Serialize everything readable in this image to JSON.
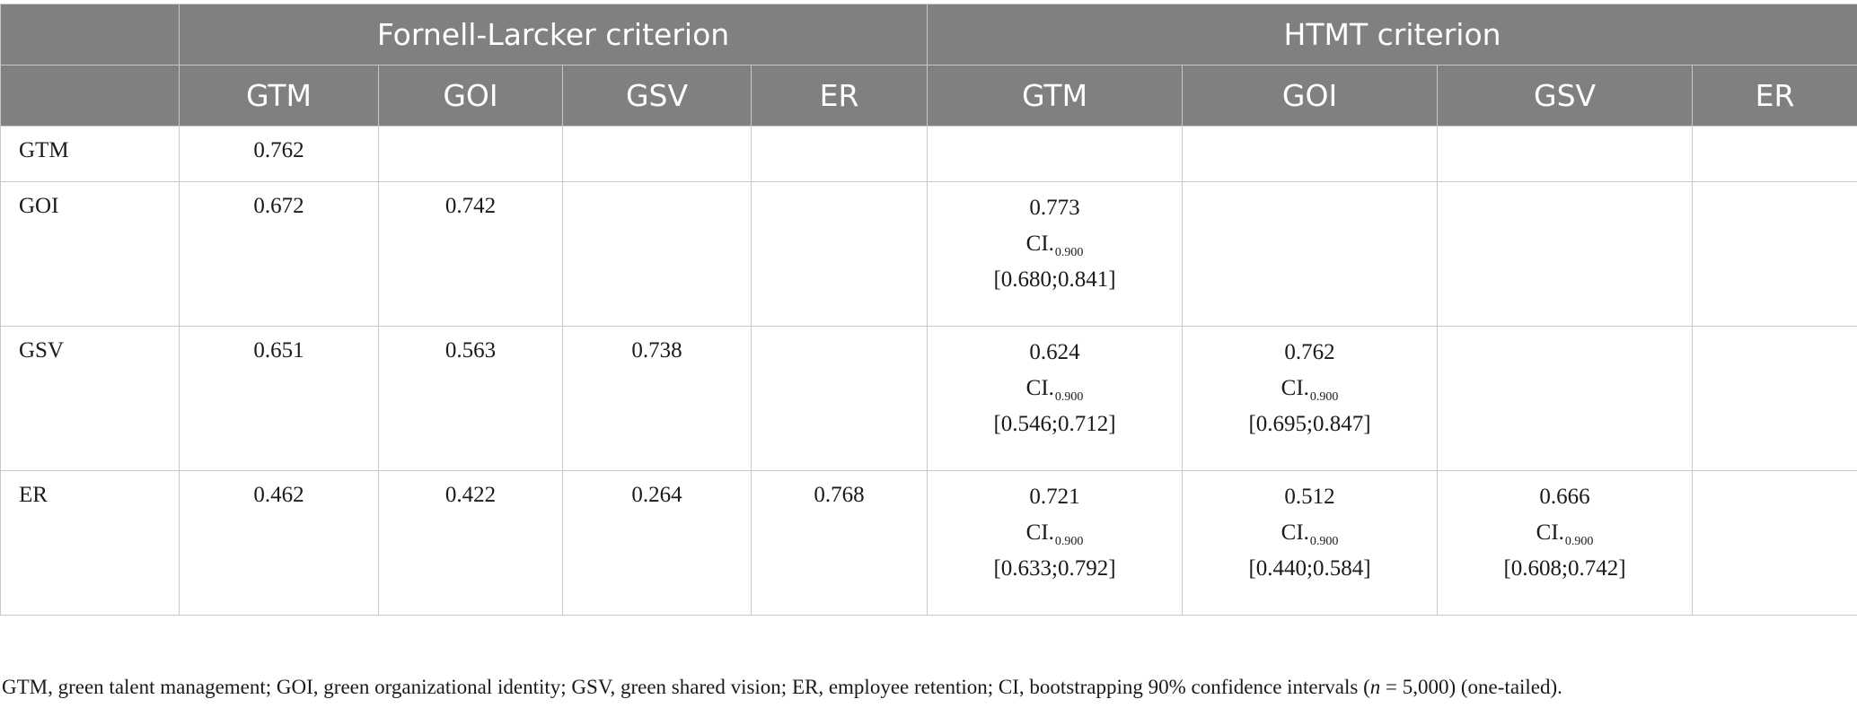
{
  "header": {
    "groups": [
      "Fornell-Larcker criterion",
      "HTMT criterion"
    ],
    "fl_cols": [
      "GTM",
      "GOI",
      "GSV",
      "ER"
    ],
    "htmt_cols": [
      "GTM",
      "GOI",
      "GSV",
      "ER"
    ]
  },
  "ci_label": "CI.",
  "ci_sub": "0.900",
  "rows": [
    {
      "label": "GTM",
      "fl": [
        "0.762",
        "",
        "",
        ""
      ],
      "htmt": []
    },
    {
      "label": "GOI",
      "fl": [
        "0.672",
        "0.742",
        "",
        ""
      ],
      "htmt": [
        {
          "value": "0.773",
          "interval": "[0.680;0.841]"
        }
      ]
    },
    {
      "label": "GSV",
      "fl": [
        "0.651",
        "0.563",
        "0.738",
        ""
      ],
      "htmt": [
        {
          "value": "0.624",
          "interval": "[0.546;0.712]"
        },
        {
          "value": "0.762",
          "interval": "[0.695;0.847]"
        }
      ]
    },
    {
      "label": "ER",
      "fl": [
        "0.462",
        "0.422",
        "0.264",
        "0.768"
      ],
      "htmt": [
        {
          "value": "0.721",
          "interval": "[0.633;0.792]"
        },
        {
          "value": "0.512",
          "interval": "[0.440;0.584]"
        },
        {
          "value": "0.666",
          "interval": "[0.608;0.742]"
        }
      ]
    }
  ],
  "footnote": {
    "before_n": "GTM, green talent management; GOI, green organizational identity; GSV, green shared vision; ER, employee retention; CI, bootstrapping 90% confidence intervals (",
    "n_var": "n",
    "after_n": " = 5,000) (one-tailed)."
  }
}
